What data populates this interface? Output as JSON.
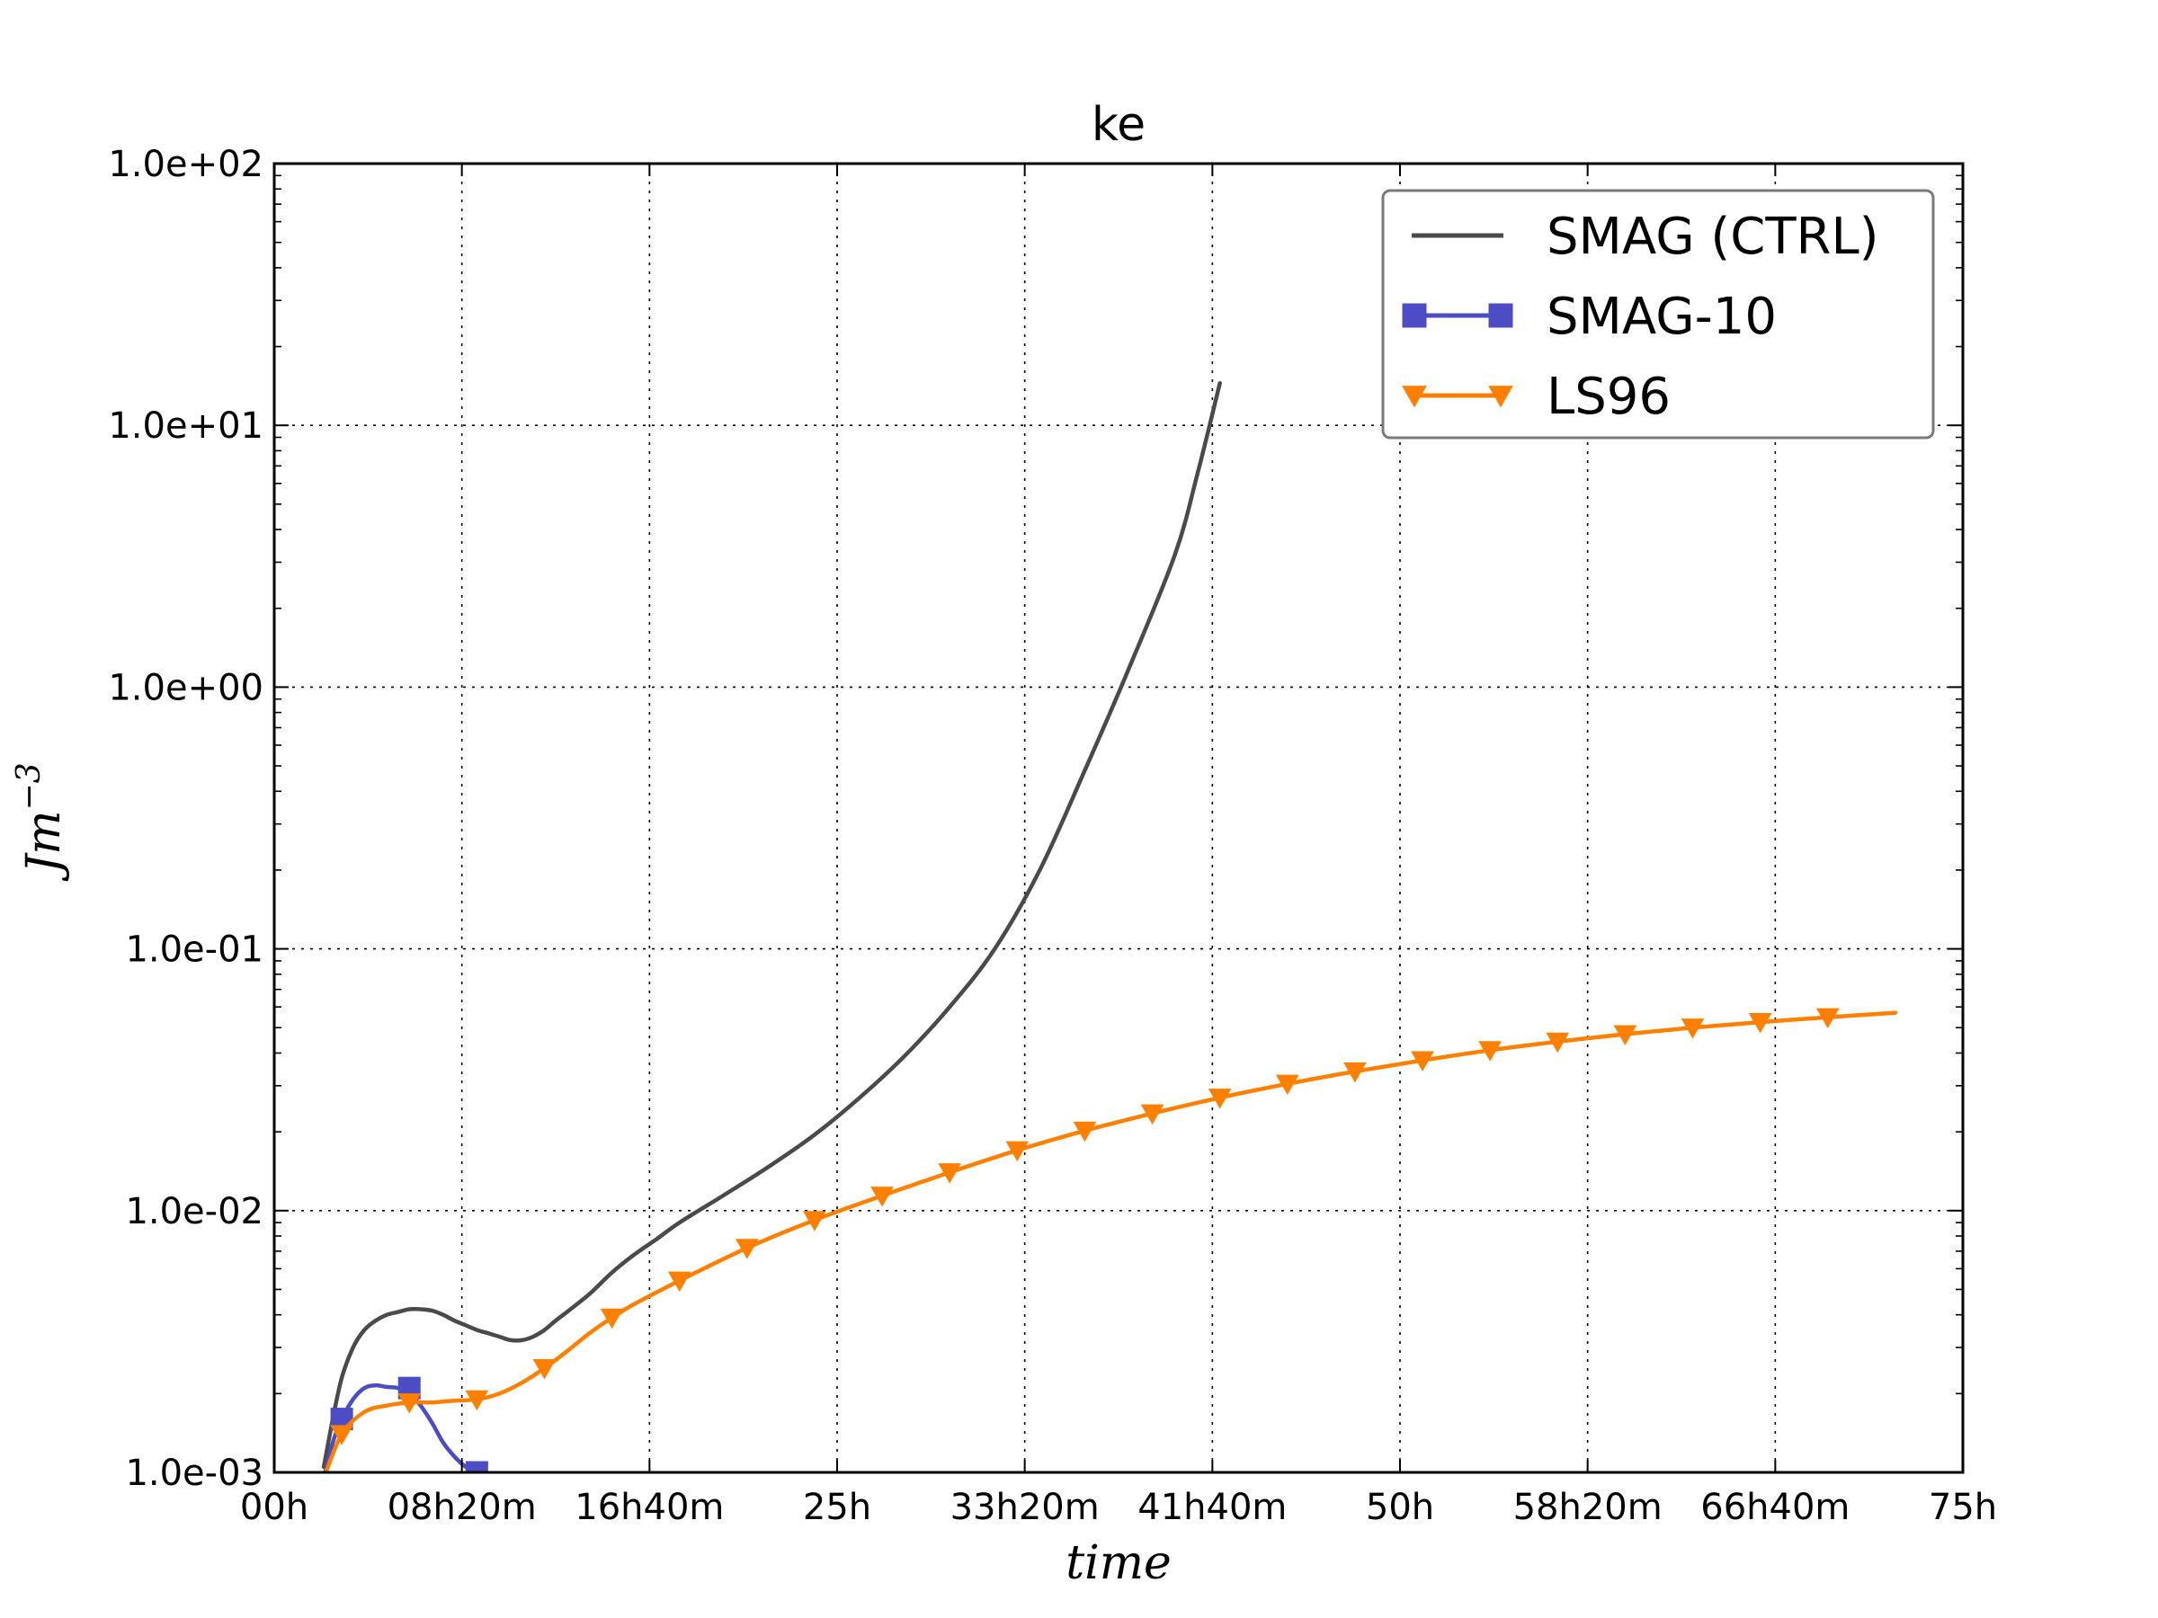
{
  "chart_data": {
    "type": "line",
    "title": "ke",
    "xlabel": "time",
    "ylabel": "Jm^-3",
    "ylabel_base": "Jm",
    "ylabel_exp": "−3",
    "x_unit": "hours",
    "xlim": [
      0,
      75
    ],
    "ylim": [
      0.001,
      100
    ],
    "y_scale": "log",
    "grid": true,
    "legend_position": "top-right",
    "x_ticks": [
      {
        "value": 0,
        "label": "00h"
      },
      {
        "value": 8.333,
        "label": "08h20m"
      },
      {
        "value": 16.667,
        "label": "16h40m"
      },
      {
        "value": 25,
        "label": "25h"
      },
      {
        "value": 33.333,
        "label": "33h20m"
      },
      {
        "value": 41.667,
        "label": "41h40m"
      },
      {
        "value": 50,
        "label": "50h"
      },
      {
        "value": 58.333,
        "label": "58h20m"
      },
      {
        "value": 66.667,
        "label": "66h40m"
      },
      {
        "value": 75,
        "label": "75h"
      }
    ],
    "y_ticks": [
      {
        "value": 0.001,
        "label": "1.0e-03"
      },
      {
        "value": 0.01,
        "label": "1.0e-02"
      },
      {
        "value": 0.1,
        "label": "1.0e-01"
      },
      {
        "value": 1,
        "label": "1.0e+00"
      },
      {
        "value": 10,
        "label": "1.0e+01"
      },
      {
        "value": 100,
        "label": "1.0e+02"
      }
    ],
    "series": [
      {
        "name": "SMAG (CTRL)",
        "color": "#4a4a4a",
        "marker": "none",
        "x": [
          2.2,
          2.6,
          3.0,
          3.5,
          4.0,
          4.5,
          5.0,
          5.5,
          6.0,
          6.5,
          7.0,
          7.5,
          8.0,
          8.5,
          9.0,
          9.5,
          10.0,
          10.5,
          11.0,
          11.5,
          12.0,
          12.5,
          13.0,
          14.0,
          15.0,
          16.0,
          17.0,
          18.0,
          20.0,
          22.0,
          24.0,
          26.0,
          28.0,
          30.0,
          32.0,
          34.0,
          36.0,
          38.0,
          40.0,
          41.0,
          42.0
        ],
        "y": [
          0.00105,
          0.0016,
          0.0023,
          0.003,
          0.0035,
          0.0038,
          0.004,
          0.0041,
          0.0042,
          0.0042,
          0.00415,
          0.004,
          0.0038,
          0.00365,
          0.0035,
          0.0034,
          0.0033,
          0.0032,
          0.0032,
          0.0033,
          0.0035,
          0.0038,
          0.0041,
          0.0048,
          0.0058,
          0.0068,
          0.0078,
          0.009,
          0.0115,
          0.0148,
          0.0195,
          0.027,
          0.039,
          0.06,
          0.1,
          0.2,
          0.48,
          1.2,
          3.2,
          6.5,
          14.5
        ]
      },
      {
        "name": "SMAG-10",
        "color": "#4c4cc4",
        "marker": "square",
        "x": [
          2.2,
          2.6,
          3.0,
          3.5,
          4.0,
          4.5,
          5.0,
          5.5,
          6.0,
          6.5,
          7.0,
          7.5,
          8.0,
          8.5,
          9.0
        ],
        "y": [
          0.00095,
          0.0013,
          0.0016,
          0.0019,
          0.0021,
          0.00215,
          0.00212,
          0.0021,
          0.002,
          0.0018,
          0.00155,
          0.0013,
          0.00115,
          0.00105,
          0.001
        ],
        "marker_x": [
          3.0,
          6.0,
          9.0
        ],
        "marker_y": [
          0.0016,
          0.0021,
          0.001
        ]
      },
      {
        "name": "LS96",
        "color": "#ff8000",
        "marker": "triangle-down",
        "x": [
          2.2,
          3.0,
          4.0,
          5.0,
          6.0,
          7.0,
          8.0,
          9.0,
          10.0,
          11.0,
          12.0,
          13.0,
          14.0,
          15.0,
          16.0,
          18.0,
          21.0,
          24.0,
          27.0,
          30.0,
          33.0,
          36.0,
          39.0,
          42.0,
          45.0,
          48.0,
          51.0,
          54.0,
          57.0,
          60.0,
          63.0,
          66.0,
          69.0,
          72.0
        ],
        "y": [
          0.00095,
          0.0014,
          0.0017,
          0.0018,
          0.00185,
          0.00185,
          0.00188,
          0.0019,
          0.002,
          0.0022,
          0.0025,
          0.0029,
          0.0034,
          0.0039,
          0.0044,
          0.0054,
          0.0072,
          0.0092,
          0.0114,
          0.014,
          0.017,
          0.0202,
          0.0235,
          0.027,
          0.0305,
          0.034,
          0.0375,
          0.041,
          0.0442,
          0.0472,
          0.05,
          0.0525,
          0.0548,
          0.057
        ],
        "marker_x": [
          3.0,
          6.0,
          9.0,
          12.0,
          15.0,
          18.0,
          21.0,
          24.0,
          27.0,
          30.0,
          33.0,
          36.0,
          39.0,
          42.0,
          45.0,
          48.0,
          51.0,
          54.0,
          57.0,
          60.0,
          63.0,
          66.0,
          69.0
        ],
        "marker_y": [
          0.0014,
          0.00185,
          0.0019,
          0.0025,
          0.0039,
          0.0054,
          0.0072,
          0.0092,
          0.0114,
          0.014,
          0.017,
          0.0202,
          0.0235,
          0.027,
          0.0305,
          0.034,
          0.0375,
          0.041,
          0.0442,
          0.0472,
          0.05,
          0.0525,
          0.0548
        ]
      }
    ]
  }
}
